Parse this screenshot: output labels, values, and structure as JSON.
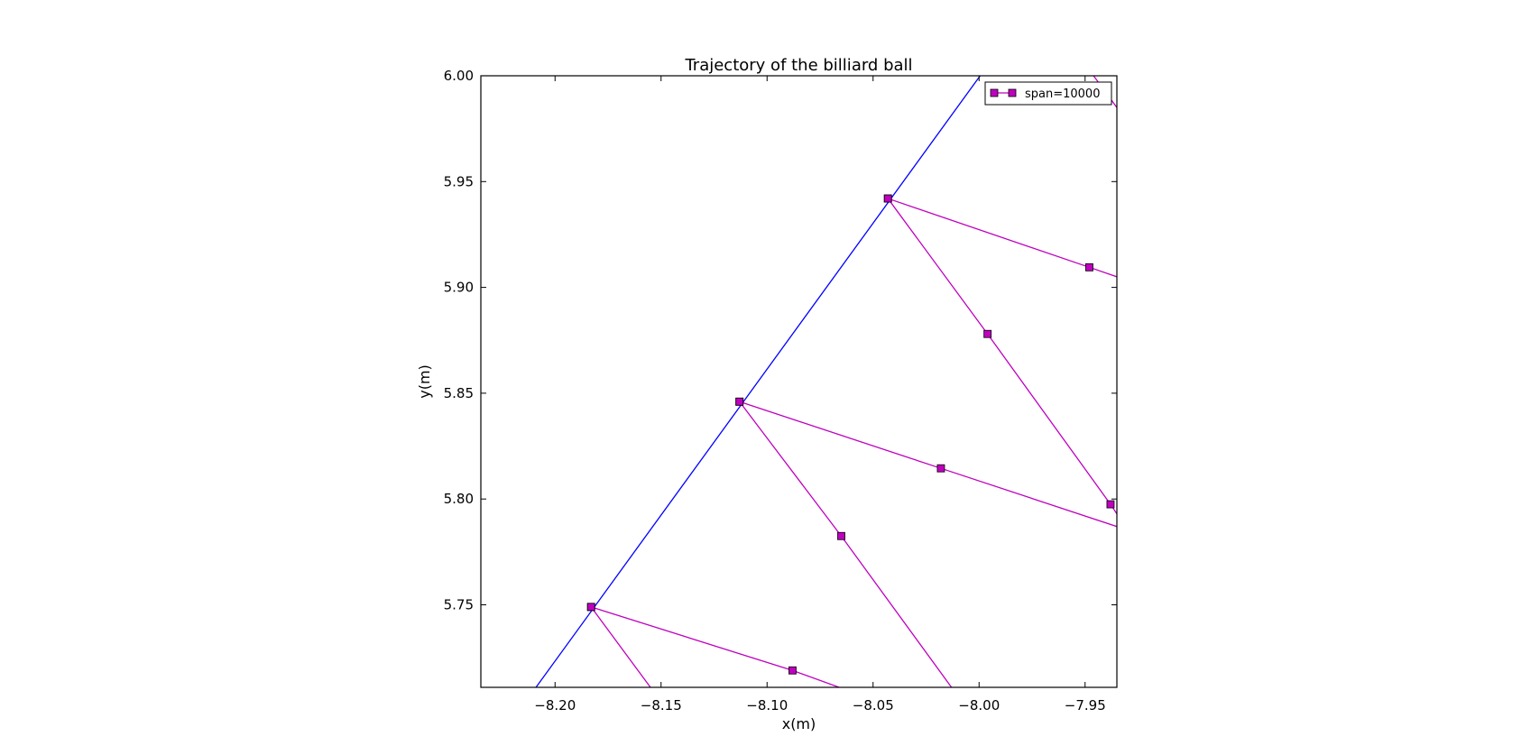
{
  "chart_data": {
    "type": "line",
    "title": "Trajectory of the billiard ball",
    "xlabel": "x(m)",
    "ylabel": "y(m)",
    "xlim": [
      -8.235,
      -7.935
    ],
    "ylim": [
      5.711,
      6.0
    ],
    "x_ticks": [
      -8.2,
      -8.15,
      -8.1,
      -8.05,
      -8.0,
      -7.95
    ],
    "x_tick_labels": [
      "−8.20",
      "−8.15",
      "−8.10",
      "−8.05",
      "−8.00",
      "−7.95"
    ],
    "y_ticks": [
      5.75,
      5.8,
      5.85,
      5.9,
      5.95,
      6.0
    ],
    "y_tick_labels": [
      "5.75",
      "5.80",
      "5.85",
      "5.90",
      "5.95",
      "6.00"
    ],
    "grid": false,
    "legend": {
      "placement": "top-right",
      "entries": [
        "span=10000"
      ]
    },
    "boundary": {
      "color": "#0000ff",
      "points": [
        [
          -8.209,
          5.711
        ],
        [
          -7.9995,
          6.0
        ]
      ]
    },
    "series": [
      {
        "name": "span=10000",
        "color": "#bf00bf",
        "marker": "square",
        "segments": [
          {
            "points": [
              [
                -8.183,
                5.749
              ],
              [
                -8.088,
                5.719
              ],
              [
                -8.066,
                5.711
              ]
            ],
            "markers": [
              0,
              1
            ]
          },
          {
            "points": [
              [
                -8.183,
                5.749
              ],
              [
                -8.155,
                5.711
              ]
            ],
            "markers": [
              0
            ]
          },
          {
            "points": [
              [
                -8.113,
                5.846
              ],
              [
                -8.018,
                5.8145
              ],
              [
                -7.935,
                5.787
              ]
            ],
            "markers": [
              0,
              1
            ]
          },
          {
            "points": [
              [
                -8.113,
                5.846
              ],
              [
                -8.065,
                5.7825
              ],
              [
                -8.013,
                5.711
              ]
            ],
            "markers": [
              0,
              1
            ]
          },
          {
            "points": [
              [
                -8.043,
                5.942
              ],
              [
                -7.948,
                5.9095
              ],
              [
                -7.935,
                5.905
              ]
            ],
            "markers": [
              0,
              1
            ]
          },
          {
            "points": [
              [
                -8.043,
                5.942
              ],
              [
                -7.996,
                5.878
              ],
              [
                -7.938,
                5.7975
              ],
              [
                -7.935,
                5.793
              ]
            ],
            "markers": [
              0,
              1,
              2
            ]
          },
          {
            "points": [
              [
                -7.946,
                6.0
              ],
              [
                -7.935,
                5.985
              ]
            ],
            "markers": []
          }
        ]
      }
    ]
  }
}
